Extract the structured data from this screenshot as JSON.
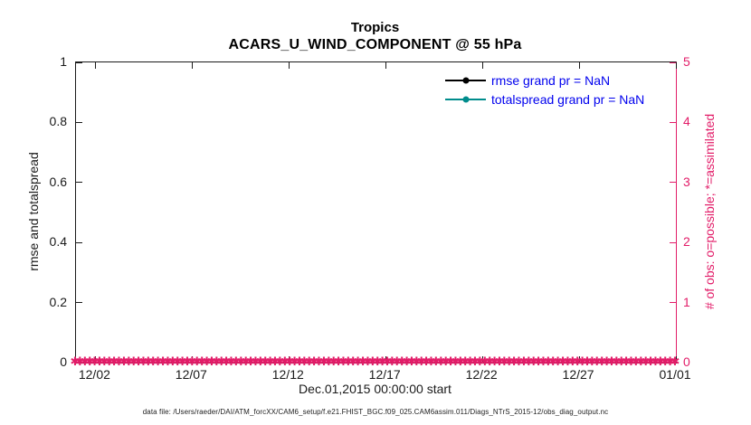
{
  "figure": {
    "title": "Tropics",
    "subtitle": "ACARS_U_WIND_COMPONENT @ 55 hPa",
    "xlabel": "Dec.01,2015 00:00:00 start",
    "ylabel_left": "rmse and totalspread",
    "ylabel_right": "# of obs: o=possible; *=assimilated",
    "caption": "data file: /Users/raeder/DAI/ATM_forcXX/CAM6_setup/f.e21.FHIST_BGC.f09_025.CAM6assim.011/Diags_NTrS_2015-12/obs_diag_output.nc"
  },
  "colors": {
    "pink": "#e21c68",
    "teal": "#008c8c",
    "axis": "#1a1a1a",
    "legendText": "#0000ee"
  },
  "legend": {
    "position": "upper right",
    "items": [
      {
        "label": "rmse grand pr = NaN",
        "color": "#000000",
        "marker": "filled-circle"
      },
      {
        "label": "totalspread grand pr = NaN",
        "color": "#008c8c",
        "marker": "filled-circle"
      }
    ]
  },
  "chart_data": {
    "type": "line",
    "title": "Tropics",
    "subtitle": "ACARS_U_WIND_COMPONENT @ 55 hPa",
    "xlabel": "Dec.01,2015 00:00:00 start",
    "ylabel_left": "rmse and totalspread",
    "ylabel_right": "# of obs: o=possible; *=assimilated",
    "ylim_left": [
      0,
      1
    ],
    "yticks_left": [
      "0",
      "0.2",
      "0.4",
      "0.6",
      "0.8",
      "1"
    ],
    "ylim_right": [
      0,
      5
    ],
    "yticks_right": [
      "0",
      "1",
      "2",
      "3",
      "4",
      "5"
    ],
    "xticks": [
      "12/02",
      "12/07",
      "12/12",
      "12/17",
      "12/22",
      "12/27",
      "01/01"
    ],
    "xtick_days": [
      1,
      6,
      11,
      16,
      21,
      26,
      31
    ],
    "x_span_days": 31,
    "x_range": [
      "Dec 01 2015",
      "Jan 01 2016"
    ],
    "grid": false,
    "series": [
      {
        "name": "rmse",
        "color": "#000000",
        "values": "NaN",
        "note": "no line drawn; grand prior = NaN"
      },
      {
        "name": "totalspread",
        "color": "#008c8c",
        "values": "NaN",
        "note": "no line drawn; grand prior = NaN"
      },
      {
        "name": "obs assimilated (right axis)",
        "color": "#e21c68",
        "y_value": 0,
        "note": "dense asterisk markers at y=0 spanning Dec 01 to Jan 01"
      }
    ],
    "obs_markers": {
      "glyph": "✱",
      "count": 124,
      "y_value": 0
    }
  }
}
